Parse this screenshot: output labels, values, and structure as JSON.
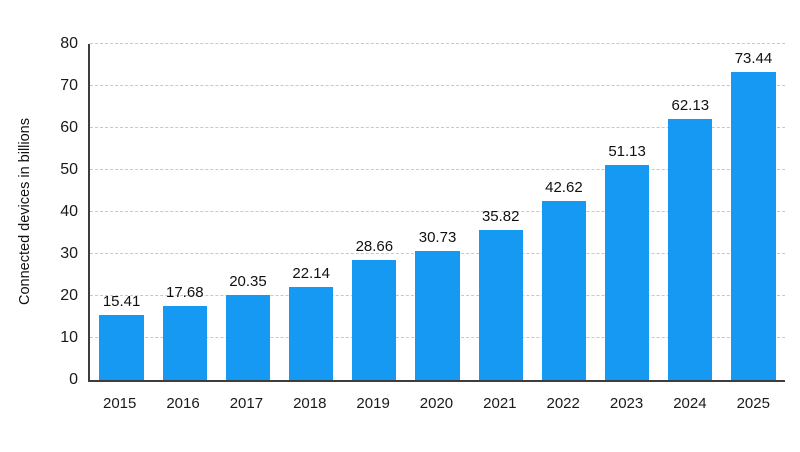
{
  "chart_data": {
    "type": "bar",
    "title": "",
    "xlabel": "",
    "ylabel": "Connected devices in billions",
    "categories": [
      "2015",
      "2016",
      "2017",
      "2018",
      "2019",
      "2020",
      "2021",
      "2022",
      "2023",
      "2024",
      "2025"
    ],
    "values": [
      15.41,
      17.68,
      20.35,
      22.14,
      28.66,
      30.73,
      35.82,
      42.62,
      51.13,
      62.13,
      73.44
    ],
    "value_labels": [
      "15.41",
      "17.68",
      "20.35",
      "22.14",
      "28.66",
      "30.73",
      "35.82",
      "42.62",
      "51.13",
      "62.13",
      "73.44"
    ],
    "ylim": [
      0,
      80
    ],
    "yticks": [
      0,
      10,
      20,
      30,
      40,
      50,
      60,
      70,
      80
    ],
    "grid": "horizontal-dashed",
    "legend": "none",
    "bar_color": "#1699f3",
    "axis_color": "#3d3d3d",
    "gridline_color": "#c8c8c8"
  }
}
